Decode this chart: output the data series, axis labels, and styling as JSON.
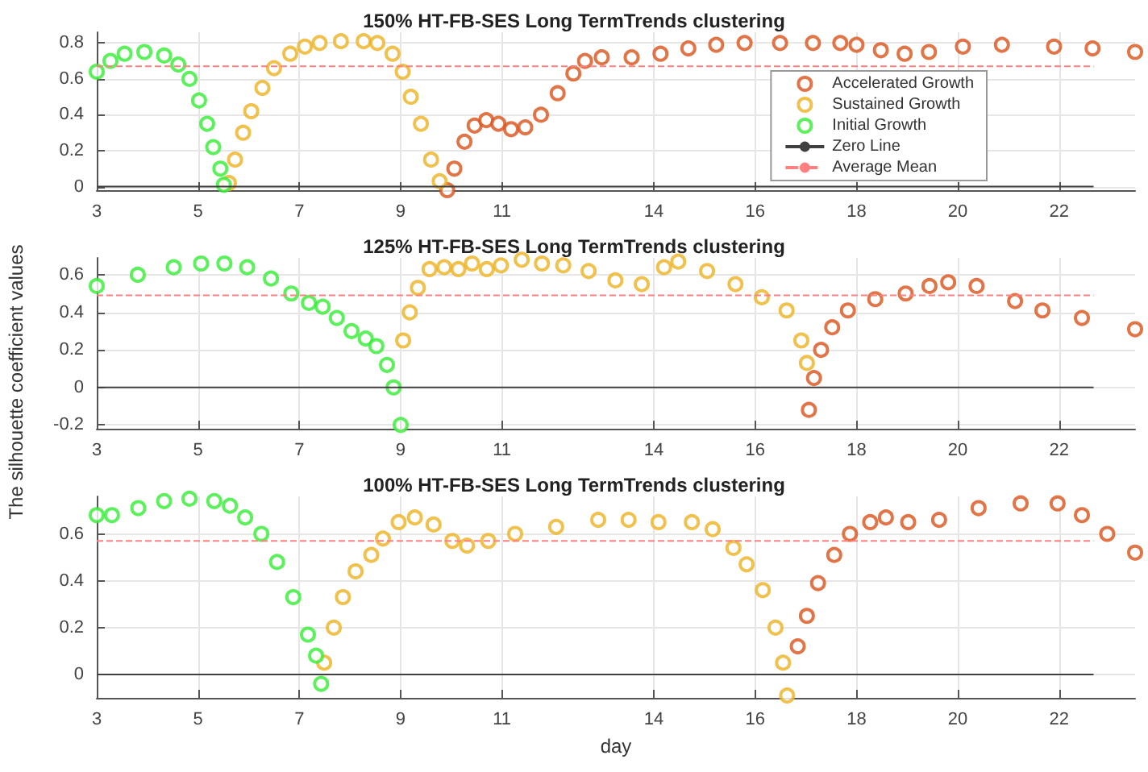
{
  "chart_data": [
    {
      "type": "scatter",
      "title": "150% HT-FB-SES Long TermTrends clustering",
      "marker": "circle",
      "grid": true,
      "legend": "right",
      "xlim": [
        3,
        23.5
      ],
      "xticks": [
        3,
        5,
        7,
        9,
        11,
        14,
        16,
        18,
        20,
        22
      ],
      "ylim": [
        -0.02,
        0.86
      ],
      "yticks": [
        0,
        0.2,
        0.4,
        0.6,
        0.8
      ],
      "series": [
        {
          "name": "Accelerated Growth",
          "color": "#d95319",
          "x": [
            9.92,
            10.06,
            10.26,
            10.46,
            10.69,
            10.93,
            11.18,
            11.46,
            11.77,
            12.1,
            12.41,
            12.64,
            12.97,
            13.56,
            14.13,
            14.68,
            15.23,
            15.79,
            16.49,
            17.14,
            17.68,
            18.0,
            18.48,
            18.95,
            19.43,
            20.1,
            20.87,
            21.9,
            22.66,
            23.5
          ],
          "values": [
            -0.02,
            0.1,
            0.25,
            0.34,
            0.37,
            0.35,
            0.32,
            0.33,
            0.4,
            0.52,
            0.63,
            0.7,
            0.72,
            0.72,
            0.74,
            0.77,
            0.79,
            0.8,
            0.8,
            0.8,
            0.8,
            0.79,
            0.76,
            0.74,
            0.75,
            0.78,
            0.79,
            0.78,
            0.77,
            0.75
          ]
        },
        {
          "name": "Sustained Growth",
          "color": "#edb120",
          "x": [
            5.61,
            5.73,
            5.89,
            6.05,
            6.27,
            6.5,
            6.82,
            7.11,
            7.4,
            7.82,
            8.27,
            8.54,
            8.84,
            9.04,
            9.2,
            9.4,
            9.6,
            9.77
          ],
          "values": [
            0.02,
            0.15,
            0.3,
            0.42,
            0.55,
            0.66,
            0.74,
            0.78,
            0.8,
            0.81,
            0.81,
            0.8,
            0.74,
            0.64,
            0.5,
            0.35,
            0.15,
            0.03
          ]
        },
        {
          "name": "Initial Growth",
          "color": "#33ee33",
          "x": [
            3.0,
            3.27,
            3.55,
            3.94,
            4.33,
            4.61,
            4.83,
            5.02,
            5.18,
            5.3,
            5.44,
            5.51
          ],
          "values": [
            0.64,
            0.7,
            0.74,
            0.75,
            0.73,
            0.68,
            0.6,
            0.48,
            0.35,
            0.22,
            0.1,
            0.01
          ]
        }
      ],
      "ref_lines": [
        {
          "axis": "y",
          "value": 0,
          "label": "Zero Line",
          "color": "#404040"
        },
        {
          "axis": "y",
          "value": 0.67,
          "label": "Average Mean",
          "color": "#ff8080",
          "line_style": "dashed"
        }
      ]
    },
    {
      "type": "scatter",
      "title": "125% HT-FB-SES Long TermTrends clustering",
      "ylabel": "The silhouette coefficient values",
      "marker": "circle",
      "grid": true,
      "xlim": [
        3,
        23.5
      ],
      "xticks": [
        3,
        5,
        7,
        9,
        11,
        14,
        16,
        18,
        20,
        22
      ],
      "ylim": [
        -0.22,
        0.69
      ],
      "yticks": [
        -0.2,
        0,
        0.2,
        0.4,
        0.6
      ],
      "series": [
        {
          "color": "#d95319",
          "x": [
            17.06,
            17.16,
            17.3,
            17.52,
            17.83,
            18.37,
            18.97,
            19.44,
            19.81,
            20.37,
            21.13,
            21.67,
            22.45,
            23.5
          ],
          "values": [
            -0.12,
            0.05,
            0.2,
            0.32,
            0.41,
            0.47,
            0.5,
            0.54,
            0.56,
            0.54,
            0.46,
            0.41,
            0.37,
            0.31
          ]
        },
        {
          "color": "#edb120",
          "x": [
            9.05,
            9.18,
            9.34,
            9.57,
            9.86,
            10.14,
            10.41,
            10.7,
            10.98,
            11.39,
            11.79,
            12.21,
            12.71,
            13.24,
            13.76,
            14.2,
            14.48,
            15.05,
            15.61,
            16.13,
            16.62,
            16.91,
            17.02
          ],
          "values": [
            0.25,
            0.4,
            0.53,
            0.63,
            0.64,
            0.63,
            0.66,
            0.63,
            0.65,
            0.68,
            0.66,
            0.65,
            0.62,
            0.57,
            0.55,
            0.64,
            0.67,
            0.62,
            0.55,
            0.48,
            0.41,
            0.25,
            0.13
          ]
        },
        {
          "color": "#33ee33",
          "x": [
            3.0,
            3.81,
            4.52,
            5.06,
            5.52,
            5.97,
            6.44,
            6.84,
            7.19,
            7.46,
            7.74,
            8.03,
            8.31,
            8.52,
            8.73,
            8.86,
            9.0
          ],
          "values": [
            0.54,
            0.6,
            0.64,
            0.66,
            0.66,
            0.64,
            0.58,
            0.5,
            0.45,
            0.43,
            0.37,
            0.3,
            0.26,
            0.22,
            0.12,
            0.0,
            -0.2
          ]
        }
      ],
      "ref_lines": [
        {
          "axis": "y",
          "value": 0,
          "color": "#404040"
        },
        {
          "axis": "y",
          "value": 0.49,
          "color": "#ff8080",
          "line_style": "dashed"
        }
      ]
    },
    {
      "type": "scatter",
      "title": "100% HT-FB-SES Long TermTrends clustering",
      "xlabel": "day",
      "marker": "circle",
      "grid": true,
      "xlim": [
        3,
        23.5
      ],
      "xticks": [
        3,
        5,
        7,
        9,
        11,
        14,
        16,
        18,
        20,
        22
      ],
      "ylim": [
        -0.1,
        0.76
      ],
      "yticks": [
        0,
        0.2,
        0.4,
        0.6
      ],
      "series": [
        {
          "color": "#d95319",
          "x": [
            16.84,
            17.02,
            17.24,
            17.56,
            17.87,
            18.27,
            18.58,
            19.02,
            19.63,
            20.41,
            21.24,
            21.97,
            22.45,
            22.95,
            23.5
          ],
          "values": [
            0.12,
            0.25,
            0.39,
            0.51,
            0.6,
            0.65,
            0.67,
            0.65,
            0.66,
            0.71,
            0.73,
            0.73,
            0.68,
            0.6,
            0.52
          ]
        },
        {
          "color": "#edb120",
          "x": [
            7.49,
            7.68,
            7.86,
            8.11,
            8.42,
            8.65,
            8.96,
            9.28,
            9.65,
            10.02,
            10.31,
            10.73,
            11.26,
            12.07,
            12.9,
            13.5,
            14.09,
            14.75,
            15.16,
            15.57,
            15.83,
            16.15,
            16.4,
            16.55,
            16.63
          ],
          "values": [
            0.05,
            0.2,
            0.33,
            0.44,
            0.51,
            0.58,
            0.65,
            0.67,
            0.64,
            0.57,
            0.55,
            0.57,
            0.6,
            0.63,
            0.66,
            0.66,
            0.65,
            0.65,
            0.62,
            0.54,
            0.47,
            0.36,
            0.2,
            0.05,
            -0.09
          ]
        },
        {
          "color": "#33ee33",
          "x": [
            3.0,
            3.3,
            3.82,
            4.33,
            4.83,
            5.32,
            5.63,
            5.93,
            6.25,
            6.56,
            6.88,
            7.17,
            7.33,
            7.43
          ],
          "values": [
            0.68,
            0.68,
            0.71,
            0.74,
            0.75,
            0.74,
            0.72,
            0.67,
            0.6,
            0.48,
            0.33,
            0.17,
            0.08,
            -0.04
          ]
        }
      ],
      "ref_lines": [
        {
          "axis": "y",
          "value": 0,
          "color": "#404040"
        },
        {
          "axis": "y",
          "value": 0.57,
          "color": "#ff8080",
          "line_style": "dashed"
        }
      ]
    }
  ]
}
